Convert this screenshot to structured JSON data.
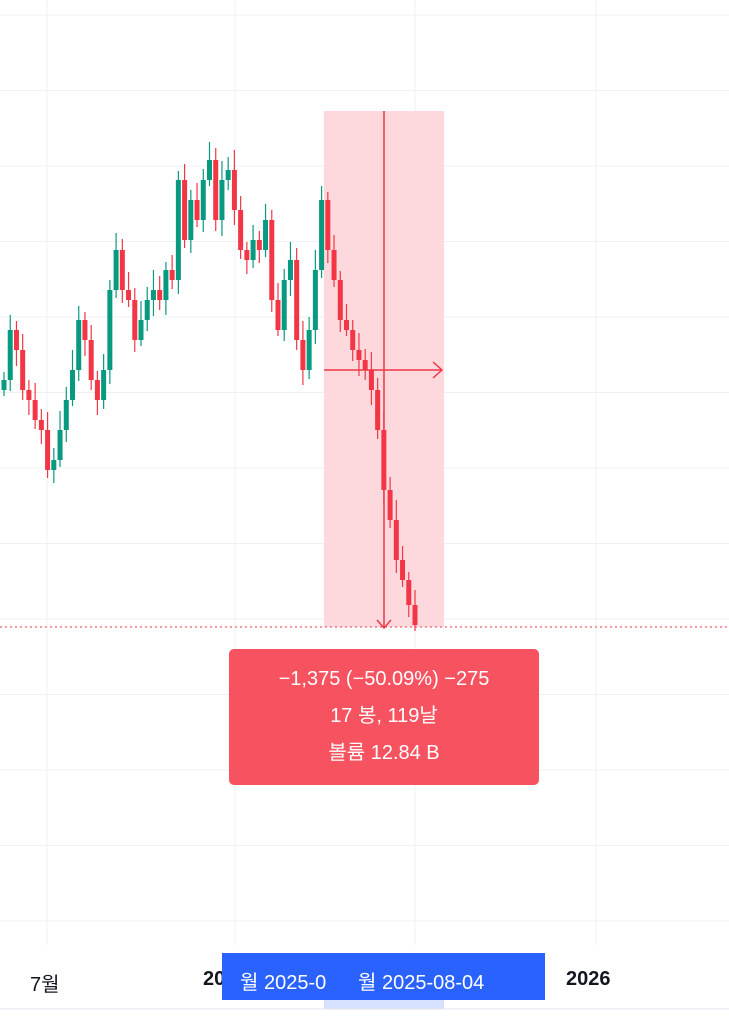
{
  "tooltip": {
    "line1": "−1,375 (−50.09%) −275",
    "line2": "17 봉, 119날",
    "line3": "볼륨 12.84 B"
  },
  "time_axis": {
    "labels": [
      "7월",
      "20",
      "2026"
    ],
    "cursor_left": "월 2025-0",
    "cursor_right": "월 2025-08-04"
  }
}
